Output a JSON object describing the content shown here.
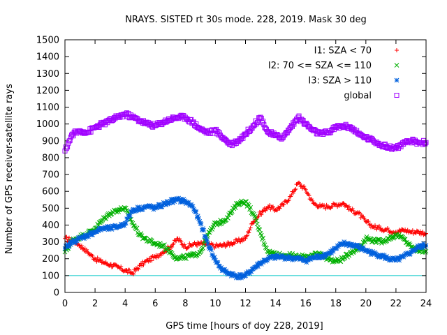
{
  "chart_data": {
    "type": "scatter",
    "title": "NRAYS. SISTED rt 30s mode. 228, 2019. Mask 30 deg",
    "xlabel": "GPS time [hours of doy 228, 2019]",
    "ylabel": "Number of GPS receiver-satellite rays",
    "xlim": [
      0,
      24
    ],
    "ylim": [
      0,
      1500
    ],
    "xticks": [
      0,
      2,
      4,
      6,
      8,
      10,
      12,
      14,
      16,
      18,
      20,
      22,
      24
    ],
    "yticks": [
      0,
      100,
      200,
      300,
      400,
      500,
      600,
      700,
      800,
      900,
      1000,
      1100,
      1200,
      1300,
      1400,
      1500
    ],
    "grid": false,
    "legend_position": "top-right",
    "reference_line": {
      "y": 100,
      "color": "#00c8c8"
    },
    "series": [
      {
        "name": "I1: SZA < 70",
        "marker": "plus",
        "color": "#ff0000",
        "x": [
          0,
          0.5,
          1,
          1.5,
          2,
          2.5,
          3,
          3.5,
          4,
          4.5,
          5,
          5.5,
          6,
          6.5,
          7,
          7.5,
          8,
          8.5,
          9,
          9.5,
          10,
          10.5,
          11,
          11.5,
          12,
          12.5,
          13,
          13.5,
          14,
          14.5,
          15,
          15.5,
          16,
          16.5,
          17,
          17.5,
          18,
          18.5,
          19,
          19.5,
          20,
          20.5,
          21,
          21.5,
          22,
          22.5,
          23,
          23.5,
          24
        ],
        "y": [
          320,
          310,
          280,
          240,
          200,
          180,
          165,
          150,
          130,
          115,
          160,
          190,
          210,
          240,
          270,
          320,
          270,
          285,
          290,
          285,
          275,
          280,
          290,
          305,
          320,
          420,
          470,
          510,
          490,
          520,
          570,
          650,
          610,
          530,
          510,
          510,
          520,
          530,
          490,
          470,
          420,
          390,
          380,
          370,
          360,
          370,
          360,
          360,
          350
        ]
      },
      {
        "name": "I2: 70 <= SZA <= 110",
        "marker": "cross",
        "color": "#00b000",
        "x": [
          0,
          0.5,
          1,
          1.5,
          2,
          2.5,
          3,
          3.5,
          4,
          4.5,
          5,
          5.5,
          6,
          6.5,
          7,
          7.5,
          8,
          8.5,
          9,
          9.5,
          10,
          10.5,
          11,
          11.5,
          12,
          12.5,
          13,
          13.5,
          14,
          14.5,
          15,
          15.5,
          16,
          16.5,
          17,
          17.5,
          18,
          18.5,
          19,
          19.5,
          20,
          20.5,
          21,
          21.5,
          22,
          22.5,
          23,
          23.5,
          24
        ],
        "y": [
          240,
          310,
          330,
          350,
          380,
          430,
          470,
          490,
          500,
          410,
          340,
          310,
          290,
          280,
          240,
          200,
          210,
          220,
          240,
          340,
          410,
          420,
          470,
          530,
          540,
          470,
          350,
          240,
          230,
          220,
          220,
          210,
          215,
          220,
          230,
          200,
          185,
          200,
          240,
          260,
          320,
          310,
          300,
          320,
          340,
          320,
          270,
          250,
          245
        ]
      },
      {
        "name": "I3: SZA > 110",
        "marker": "star",
        "color": "#0060dd",
        "x": [
          0,
          0.5,
          1,
          1.5,
          2,
          2.5,
          3,
          3.5,
          4,
          4.5,
          5,
          5.5,
          6,
          6.5,
          7,
          7.5,
          8,
          8.5,
          9,
          9.5,
          10,
          10.5,
          11,
          11.5,
          12,
          12.5,
          13,
          13.5,
          14,
          14.5,
          15,
          15.5,
          16,
          16.5,
          17,
          17.5,
          18,
          18.5,
          19,
          19.5,
          20,
          20.5,
          21,
          21.5,
          22,
          22.5,
          23,
          23.5,
          24
        ],
        "y": [
          260,
          300,
          320,
          340,
          360,
          380,
          380,
          390,
          410,
          490,
          500,
          510,
          500,
          520,
          540,
          550,
          540,
          510,
          410,
          290,
          190,
          130,
          110,
          95,
          100,
          140,
          175,
          200,
          210,
          210,
          205,
          200,
          190,
          205,
          215,
          230,
          260,
          290,
          285,
          270,
          250,
          230,
          220,
          200,
          190,
          210,
          240,
          270,
          280
        ]
      },
      {
        "name": "global",
        "marker": "square",
        "color": "#a000ff",
        "x": [
          0,
          0.5,
          1,
          1.5,
          2,
          2.5,
          3,
          3.5,
          4,
          4.5,
          5,
          5.5,
          6,
          6.5,
          7,
          7.5,
          8,
          8.5,
          9,
          9.5,
          10,
          10.5,
          11,
          11.5,
          12,
          12.5,
          13,
          13.5,
          14,
          14.5,
          15,
          15.5,
          16,
          16.5,
          17,
          17.5,
          18,
          18.5,
          19,
          19.5,
          20,
          20.5,
          21,
          21.5,
          22,
          22.5,
          23,
          23.5,
          24
        ],
        "y": [
          840,
          940,
          960,
          950,
          980,
          1000,
          1020,
          1040,
          1060,
          1040,
          1020,
          1000,
          990,
          1010,
          1030,
          1040,
          1040,
          1010,
          970,
          950,
          960,
          920,
          880,
          900,
          940,
          990,
          1040,
          950,
          930,
          920,
          980,
          1040,
          1000,
          960,
          940,
          950,
          980,
          990,
          980,
          940,
          920,
          900,
          880,
          860,
          860,
          880,
          900,
          890,
          890
        ]
      }
    ]
  }
}
